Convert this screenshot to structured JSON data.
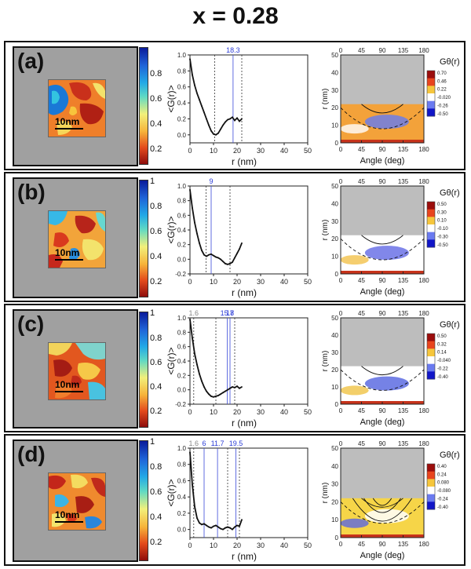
{
  "figure_title": "x = 0.28",
  "common": {
    "scale_label": "10nm",
    "corr_ylabel": "<G(r)>",
    "corr_xlabel": "r (nm)",
    "corr_xticks": [
      "0",
      "10",
      "20",
      "30",
      "40",
      "50"
    ],
    "polar_ylabel": "r (nm)",
    "polar_xlabel": "Angle (deg)",
    "polar_angle_ticks": [
      "0",
      "45",
      "90",
      "135",
      "180"
    ],
    "polar_r_ticks": [
      "0",
      "10",
      "20",
      "30",
      "40",
      "50"
    ],
    "polar_legend_title": "Gθ(r)"
  },
  "panels": [
    {
      "label": "(a)",
      "colorbar_ticks": [
        "0.8",
        "0.6",
        "0.4",
        "0.2"
      ],
      "corr_yticks": [
        "1.0",
        "0.8",
        "0.6",
        "0.4",
        "0.2",
        "0.0"
      ],
      "peak_labels": [
        {
          "text": "18.3",
          "color": "#2a3bd6"
        }
      ],
      "polar_legend_ticks": [
        "0.70",
        "0.46",
        "0.22",
        "-0.020",
        "-0.26",
        "-0.50"
      ]
    },
    {
      "label": "(b)",
      "colorbar_ticks": [
        "1",
        "0.8",
        "0.6",
        "0.4",
        "0.2"
      ],
      "corr_yticks": [
        "1.0",
        "0.8",
        "0.6",
        "0.4",
        "0.2",
        "0.0",
        "-0.2"
      ],
      "peak_labels": [
        {
          "text": "9",
          "color": "#2a3bd6"
        }
      ],
      "polar_legend_ticks": [
        "0.50",
        "0.30",
        "0.10",
        "-0.10",
        "-0.30",
        "-0.50"
      ]
    },
    {
      "label": "(c)",
      "colorbar_ticks": [
        "1",
        "0.8",
        "0.6",
        "0.4",
        "0.2"
      ],
      "corr_yticks": [
        "1.0",
        "0.8",
        "0.6",
        "0.4",
        "0.2",
        "0.0",
        "-0.2"
      ],
      "peak_labels": [
        {
          "text": "1.6",
          "color": "#888888"
        },
        {
          "text": "15.8",
          "color": "#2a3bd6"
        },
        {
          "text": "17",
          "color": "#2a3bd6"
        }
      ],
      "polar_legend_ticks": [
        "0.50",
        "0.32",
        "0.14",
        "-0.040",
        "-0.22",
        "-0.40"
      ]
    },
    {
      "label": "(d)",
      "colorbar_ticks": [
        "1",
        "0.8",
        "0.6",
        "0.4",
        "0.2"
      ],
      "corr_yticks": [
        "1.0",
        "0.8",
        "0.6",
        "0.4",
        "0.2",
        "0.0"
      ],
      "peak_labels": [
        {
          "text": "1.6",
          "color": "#888888"
        },
        {
          "text": "6",
          "color": "#2a3bd6"
        },
        {
          "text": "11.7",
          "color": "#2a3bd6"
        },
        {
          "text": "19.5",
          "color": "#2a3bd6"
        }
      ],
      "polar_legend_ticks": [
        "0.40",
        "0.24",
        "0.080",
        "-0.080",
        "-0.24",
        "-0.40"
      ]
    }
  ],
  "chart_data": [
    {
      "panel": "(a)",
      "type": "line",
      "xlabel": "r (nm)",
      "ylabel": "<G(r)>",
      "xlim": [
        0,
        50
      ],
      "ylim": [
        -0.1,
        1.0
      ],
      "x": [
        0,
        1,
        2,
        3,
        4,
        5,
        6,
        7,
        8,
        9,
        10,
        11,
        12,
        13,
        14,
        15,
        16,
        17,
        18,
        19,
        20,
        21,
        22
      ],
      "values": [
        0.95,
        0.75,
        0.62,
        0.52,
        0.44,
        0.36,
        0.28,
        0.2,
        0.12,
        0.05,
        0.01,
        0.0,
        0.02,
        0.07,
        0.12,
        0.16,
        0.19,
        0.2,
        0.22,
        0.18,
        0.21,
        0.17,
        0.2
      ],
      "reference_lines_x": [
        10.5,
        18.3,
        22
      ]
    },
    {
      "panel": "(b)",
      "type": "line",
      "xlabel": "r (nm)",
      "ylabel": "<G(r)>",
      "xlim": [
        0,
        50
      ],
      "ylim": [
        -0.2,
        1.0
      ],
      "x": [
        0,
        1,
        2,
        3,
        4,
        5,
        6,
        7,
        8,
        9,
        10,
        11,
        12,
        13,
        14,
        15,
        16,
        17,
        18,
        19,
        20,
        21,
        22
      ],
      "values": [
        0.95,
        0.7,
        0.5,
        0.35,
        0.22,
        0.12,
        0.06,
        0.04,
        0.06,
        0.07,
        0.05,
        0.03,
        0.02,
        0.0,
        -0.03,
        -0.06,
        -0.07,
        -0.06,
        -0.04,
        0.02,
        0.08,
        0.14,
        0.22
      ],
      "reference_lines_x": [
        6.8,
        9,
        17
      ]
    },
    {
      "panel": "(c)",
      "type": "line",
      "xlabel": "r (nm)",
      "ylabel": "<G(r)>",
      "xlim": [
        0,
        50
      ],
      "ylim": [
        -0.2,
        1.0
      ],
      "x": [
        0,
        1,
        2,
        3,
        4,
        5,
        6,
        7,
        8,
        9,
        10,
        11,
        12,
        13,
        14,
        15,
        16,
        17,
        18,
        19,
        20,
        21,
        22
      ],
      "values": [
        0.98,
        0.72,
        0.5,
        0.35,
        0.22,
        0.12,
        0.04,
        -0.02,
        -0.06,
        -0.09,
        -0.1,
        -0.09,
        -0.08,
        -0.06,
        -0.04,
        -0.02,
        0.0,
        0.02,
        0.04,
        0.03,
        0.05,
        0.02,
        0.04
      ],
      "reference_lines_x": [
        1.6,
        11,
        15.8,
        17,
        19
      ]
    },
    {
      "panel": "(d)",
      "type": "line",
      "xlabel": "r (nm)",
      "ylabel": "<G(r)>",
      "xlim": [
        0,
        50
      ],
      "ylim": [
        -0.1,
        1.0
      ],
      "x": [
        0,
        1,
        2,
        3,
        4,
        5,
        6,
        7,
        8,
        9,
        10,
        11,
        12,
        13,
        14,
        15,
        16,
        17,
        18,
        19,
        20,
        21,
        22
      ],
      "values": [
        0.95,
        0.55,
        0.28,
        0.14,
        0.08,
        0.06,
        0.07,
        0.05,
        0.03,
        0.02,
        0.04,
        0.05,
        0.03,
        0.01,
        0.0,
        0.02,
        0.03,
        0.02,
        0.0,
        0.03,
        0.05,
        0.04,
        0.12
      ],
      "reference_lines_x": [
        1.6,
        6,
        11.7,
        16,
        19.5,
        21
      ]
    }
  ]
}
